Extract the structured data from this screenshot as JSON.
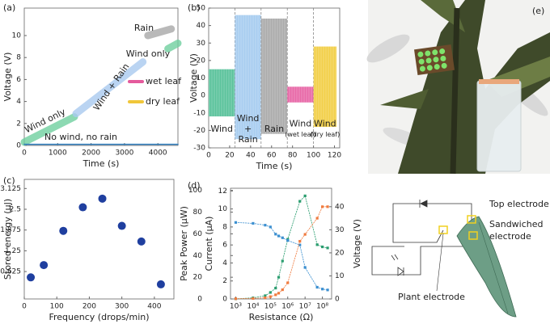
{
  "chart_data": [
    {
      "type": "line",
      "label": "(a)",
      "xlabel": "Time (s)",
      "ylabel": "Voltage (V)",
      "xlim": [
        0,
        4600
      ],
      "xticks": [
        0,
        1000,
        2000,
        3000,
        4000
      ],
      "ylim": [
        0,
        12.5
      ],
      "yticks": [
        0,
        2,
        4,
        6,
        8,
        10
      ],
      "series": [
        {
          "name": "Wind only",
          "color": "#6fcf9f",
          "x": [
            0,
            1500
          ],
          "values": [
            0.3,
            2.6
          ]
        },
        {
          "name": "Wind + Rain",
          "color": "#a9c9ef",
          "x": [
            1550,
            3550
          ],
          "values": [
            2.9,
            7.6
          ]
        },
        {
          "name": "Rain",
          "color": "#a8a8a8",
          "x": [
            3700,
            4400
          ],
          "values": [
            10,
            10.6
          ]
        },
        {
          "name": "Wind only",
          "color": "#6fcf9f",
          "x": [
            4300,
            4600
          ],
          "values": [
            8.8,
            9.3
          ]
        },
        {
          "name": "No wind, no rain",
          "color": "#2f7fc0",
          "x": [
            0,
            4600
          ],
          "values": [
            0.1,
            0.1
          ]
        }
      ],
      "legend": [
        {
          "name": "wet leaf",
          "color": "#e45a9c"
        },
        {
          "name": "dry leaf",
          "color": "#f0c63a"
        }
      ]
    },
    {
      "type": "range",
      "label": "(b)",
      "xlabel": "Time (s)",
      "ylabel": "Voltage (V)",
      "xlim": [
        0,
        125
      ],
      "xticks": [
        0,
        20,
        40,
        60,
        80,
        100,
        120
      ],
      "ylim": [
        -30,
        50
      ],
      "yticks": [
        -30,
        -20,
        -10,
        0,
        10,
        20,
        30,
        40,
        50
      ],
      "series": [
        {
          "name": [
            "Wind"
          ],
          "color": "#5cc39c",
          "x": [
            0,
            25
          ],
          "values": [
            -12,
            15
          ]
        },
        {
          "name": [
            "Wind",
            "+",
            "Rain"
          ],
          "color": "#a8cdf0",
          "x": [
            25,
            50
          ],
          "values": [
            -25,
            46
          ]
        },
        {
          "name": [
            "Rain"
          ],
          "color": "#acacac",
          "x": [
            50,
            75
          ],
          "values": [
            -22,
            44
          ]
        },
        {
          "name": [
            "Wind",
            "(wet leaf)"
          ],
          "color": "#e86aa8",
          "x": [
            75,
            100
          ],
          "values": [
            -4,
            5
          ]
        },
        {
          "name": [
            "Wind",
            "(dry leaf)"
          ],
          "color": "#f2d04a",
          "x": [
            100,
            122
          ],
          "values": [
            -18,
            28
          ]
        }
      ]
    },
    {
      "type": "scatter",
      "label": "(c)",
      "xlabel": "Frequency (drops/min)",
      "ylabel": "Stored energy (μJ)",
      "xlim": [
        0,
        460
      ],
      "xticks": [
        0,
        100,
        200,
        300,
        400
      ],
      "ylim": [
        -0.2,
        3.4
      ],
      "yticks": [
        0.625,
        1.25,
        1.875,
        2.5,
        3.125
      ],
      "color": "#1f3f9f",
      "x": [
        20,
        60,
        120,
        180,
        240,
        300,
        360,
        420
      ],
      "values": [
        0.45,
        0.82,
        1.85,
        2.56,
        2.82,
        2.0,
        1.53,
        0.24
      ]
    },
    {
      "type": "line",
      "label": "(d)",
      "xlabel": "Resistance (Ω)",
      "ylabel": "Peak Power (μW)",
      "y3label": "Current (μA)",
      "y2label": "Voltage (V)",
      "xscale": "log",
      "xlim": [
        500,
        340000000
      ],
      "xticks": [
        {
          "value": 1000,
          "label": "10³"
        },
        {
          "value": 10000,
          "label": "10⁴"
        },
        {
          "value": 100000,
          "label": "10⁵"
        },
        {
          "value": 1000000,
          "label": "10⁶"
        },
        {
          "value": 10000000,
          "label": "10⁷"
        },
        {
          "value": 100000000,
          "label": "10⁸"
        }
      ],
      "ylim": [
        0,
        102
      ],
      "yticks": [
        0,
        20,
        40,
        60,
        80,
        100
      ],
      "y3lim": [
        0,
        12.3
      ],
      "y3ticks": [
        0,
        2,
        4,
        6,
        8,
        10,
        12
      ],
      "y2lim": [
        0,
        48
      ],
      "y2ticks": [
        0,
        10,
        20,
        30,
        40
      ],
      "x": [
        1000,
        10000,
        50000,
        100000,
        200000,
        300000,
        500000,
        1000000,
        5000000,
        10000000,
        50000000,
        100000000,
        200000000
      ],
      "series": [
        {
          "color": "#2a9d6f",
          "axis": "y",
          "values": [
            0.1,
            1,
            3,
            6,
            10,
            20,
            35,
            55,
            90,
            95,
            50,
            48,
            47
          ]
        },
        {
          "color": "#3b8fd0",
          "axis": "y3",
          "values": [
            8.5,
            8.4,
            8.2,
            8.0,
            7.2,
            7.0,
            6.8,
            6.5,
            6.0,
            3.5,
            1.3,
            1.1,
            1.0
          ]
        },
        {
          "color": "#f07b3f",
          "axis": "y2",
          "values": [
            0.1,
            0.2,
            0.5,
            1,
            1.8,
            2.5,
            4,
            7,
            25,
            28,
            35,
            40,
            40
          ]
        }
      ]
    }
  ],
  "diagram": {
    "label": "(e)",
    "top": "Top electrode",
    "sandwiched": [
      "Sandwiched",
      "electrode"
    ],
    "plant": "Plant electrode"
  }
}
